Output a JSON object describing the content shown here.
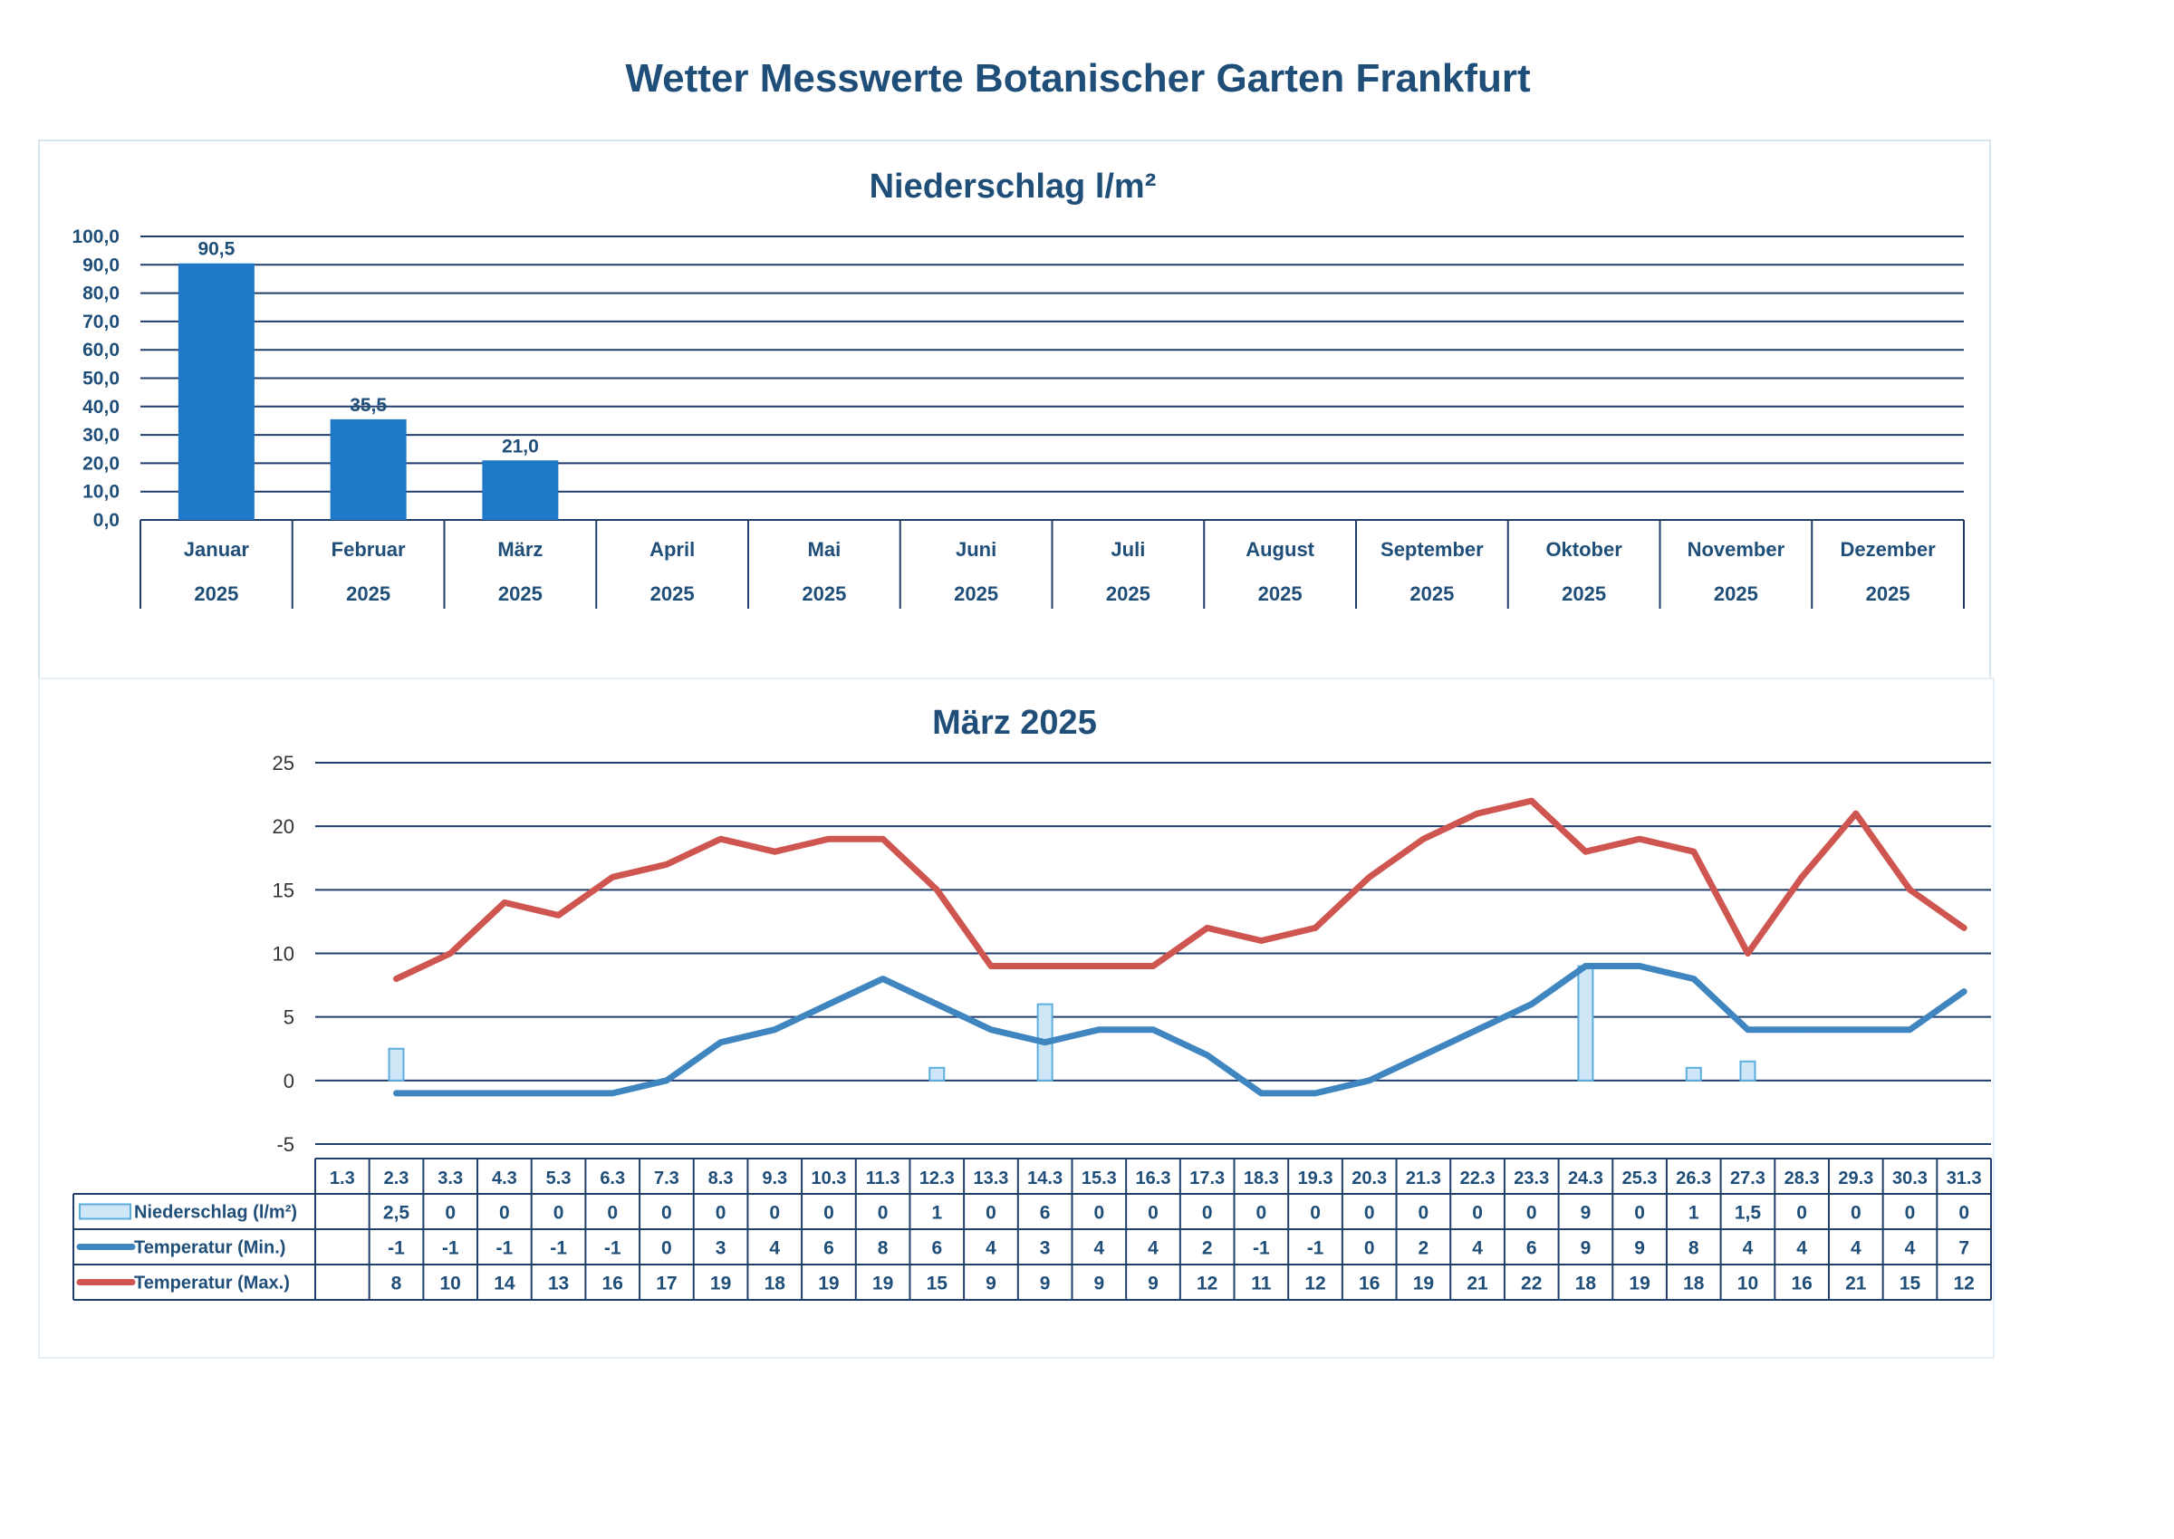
{
  "title": "Wetter Messwerte Botanischer Garten Frankfurt",
  "colors": {
    "bar": "#1f78c8",
    "grid": "#1f3e6b",
    "text": "#1f4e79",
    "precip_fill": "#cfe6f7",
    "precip_stroke": "#5aaee0",
    "tmin": "#3f86c0",
    "tmax": "#cf5650"
  },
  "chart_data": [
    {
      "type": "bar",
      "title": "Niederschlag l/m²",
      "ylim": [
        0,
        100
      ],
      "yticks": [
        "0,0",
        "10,0",
        "20,0",
        "30,0",
        "40,0",
        "50,0",
        "60,0",
        "70,0",
        "80,0",
        "90,0",
        "100,0"
      ],
      "categories": [
        "Januar",
        "Februar",
        "März",
        "April",
        "Mai",
        "Juni",
        "Juli",
        "August",
        "September",
        "Oktober",
        "November",
        "Dezember"
      ],
      "category_year": "2025",
      "values": [
        90.5,
        35.5,
        21.0,
        null,
        null,
        null,
        null,
        null,
        null,
        null,
        null,
        null
      ],
      "data_labels": [
        "90,5",
        "35,5",
        "21,0",
        "",
        "",
        "",
        "",
        "",
        "",
        "",
        "",
        ""
      ]
    },
    {
      "type": "line",
      "title": "März 2025",
      "ylim": [
        -5,
        25
      ],
      "yticks": [
        "-5",
        "0",
        "5",
        "10",
        "15",
        "20",
        "25"
      ],
      "x": [
        "1.3",
        "2.3",
        "3.3",
        "4.3",
        "5.3",
        "6.3",
        "7.3",
        "8.3",
        "9.3",
        "10.3",
        "11.3",
        "12.3",
        "13.3",
        "14.3",
        "15.3",
        "16.3",
        "17.3",
        "18.3",
        "19.3",
        "20.3",
        "21.3",
        "22.3",
        "23.3",
        "24.3",
        "25.3",
        "26.3",
        "27.3",
        "28.3",
        "29.3",
        "30.3",
        "31.3"
      ],
      "series": [
        {
          "name": "Niederschlag (l/m²)",
          "kind": "bar",
          "values": [
            null,
            2.5,
            0,
            0,
            0,
            0,
            0,
            0,
            0,
            0,
            0,
            1,
            0,
            6,
            0,
            0,
            0,
            0,
            0,
            0,
            0,
            0,
            0,
            9,
            0,
            1,
            1.5,
            0,
            0,
            0,
            0
          ],
          "labels": [
            "",
            "2,5",
            "0",
            "0",
            "0",
            "0",
            "0",
            "0",
            "0",
            "0",
            "0",
            "1",
            "0",
            "6",
            "0",
            "0",
            "0",
            "0",
            "0",
            "0",
            "0",
            "0",
            "0",
            "9",
            "0",
            "1",
            "1,5",
            "0",
            "0",
            "0",
            "0"
          ]
        },
        {
          "name": "Temperatur (Min.)",
          "kind": "line",
          "values": [
            null,
            -1,
            -1,
            -1,
            -1,
            -1,
            0,
            3,
            4,
            6,
            8,
            6,
            4,
            3,
            4,
            4,
            2,
            -1,
            -1,
            0,
            2,
            4,
            6,
            9,
            9,
            8,
            4,
            4,
            4,
            4,
            7
          ],
          "labels": [
            "",
            "-1",
            "-1",
            "-1",
            "-1",
            "-1",
            "0",
            "3",
            "4",
            "6",
            "8",
            "6",
            "4",
            "3",
            "4",
            "4",
            "2",
            "-1",
            "-1",
            "0",
            "2",
            "4",
            "6",
            "9",
            "9",
            "8",
            "4",
            "4",
            "4",
            "4",
            "7"
          ]
        },
        {
          "name": "Temperatur (Max.)",
          "kind": "line",
          "values": [
            null,
            8,
            10,
            14,
            13,
            16,
            17,
            19,
            18,
            19,
            19,
            15,
            9,
            9,
            9,
            9,
            12,
            11,
            12,
            16,
            19,
            21,
            22,
            18,
            19,
            18,
            10,
            16,
            21,
            15,
            12
          ],
          "labels": [
            "",
            "8",
            "10",
            "14",
            "13",
            "16",
            "17",
            "19",
            "18",
            "19",
            "19",
            "15",
            "9",
            "9",
            "9",
            "9",
            "12",
            "11",
            "12",
            "16",
            "19",
            "21",
            "22",
            "18",
            "19",
            "18",
            "10",
            "16",
            "21",
            "15",
            "12"
          ]
        }
      ]
    }
  ]
}
